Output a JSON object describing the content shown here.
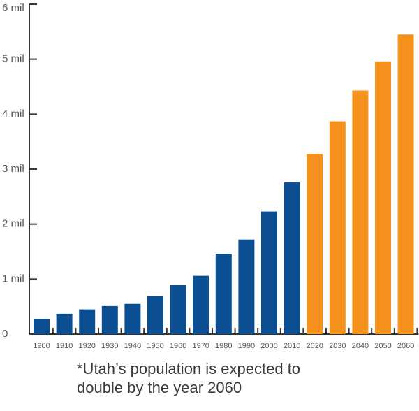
{
  "colors": {
    "historical": "#0b4f92",
    "projected": "#f5921e",
    "axis": "#333333",
    "text": "#555555"
  },
  "chart_data": {
    "type": "bar",
    "title": "",
    "xlabel": "",
    "ylabel": "",
    "categories": [
      "1900",
      "1910",
      "1920",
      "1930",
      "1940",
      "1950",
      "1960",
      "1970",
      "1980",
      "1990",
      "2000",
      "2010",
      "2020",
      "2030",
      "2040",
      "2050",
      "2060"
    ],
    "values": [
      0.28,
      0.37,
      0.45,
      0.51,
      0.55,
      0.69,
      0.89,
      1.06,
      1.46,
      1.72,
      2.23,
      2.76,
      3.28,
      3.87,
      4.43,
      4.96,
      5.45
    ],
    "status": [
      "historical",
      "historical",
      "historical",
      "historical",
      "historical",
      "historical",
      "historical",
      "historical",
      "historical",
      "historical",
      "historical",
      "historical",
      "projected",
      "projected",
      "projected",
      "projected",
      "projected"
    ],
    "ylim": [
      0,
      6
    ],
    "yticks": [
      0,
      1,
      2,
      3,
      4,
      5,
      6
    ],
    "ytick_labels": [
      "0",
      "1 mil",
      "2 mil",
      "3 mil",
      "4 mil",
      "5 mil",
      "6 mil"
    ],
    "grid": false
  },
  "caption": {
    "line1": "*Utah’s population is expected to",
    "line2": "double by the year 2060"
  }
}
